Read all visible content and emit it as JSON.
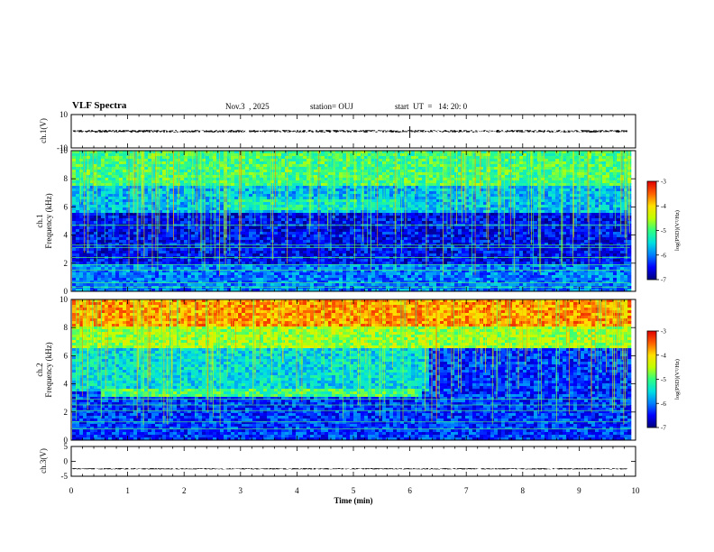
{
  "header": {
    "title": "VLF Spectra",
    "date": "Nov.3  , 2025",
    "station": "station= OUJ",
    "start": "start  UT  =   14: 20: 0"
  },
  "colors": {
    "trace": "#000000",
    "colormap": [
      "#00007a",
      "#0000ff",
      "#0080ff",
      "#00e0e0",
      "#30ff80",
      "#c0ff00",
      "#ffe000",
      "#ff6000",
      "#e00000"
    ]
  },
  "chart_data": [
    {
      "type": "line",
      "name": "ch1-waveform",
      "ylabel": "ch.1(V)",
      "ylim": [
        -10,
        10
      ],
      "yticks": [
        "10",
        "-10"
      ],
      "series": [
        {
          "name": "ch.1",
          "mean": 0,
          "amplitude": 0.8
        }
      ],
      "annotations": [
        {
          "x": 6.0,
          "type": "spike"
        }
      ]
    },
    {
      "type": "heatmap",
      "name": "ch1-spectrogram",
      "ylabel_top": "ch.1",
      "ylabel": "Frequency  (kHz)",
      "ylim": [
        0,
        10
      ],
      "yticks": [
        "0",
        "2",
        "4",
        "6",
        "8",
        "10"
      ],
      "xlim": [
        0,
        10
      ],
      "colorbar": {
        "label": "log(PSD)(V²/Hz)",
        "range": [
          -7,
          -3
        ],
        "ticks": [
          "-3",
          "-4",
          "-5",
          "-6",
          "-7"
        ]
      },
      "segments": [
        {
          "t_start": 0.0,
          "t_end": 9.9,
          "f_low": 7.5,
          "f_high": 10,
          "log_psd": -5.0
        },
        {
          "t_start": 0.0,
          "t_end": 9.9,
          "f_low": 5.5,
          "f_high": 7.5,
          "log_psd": -5.7
        },
        {
          "t_start": 2.7,
          "t_end": 5.8,
          "f_low": 5.8,
          "f_high": 6.6,
          "log_psd": -5.3
        },
        {
          "t_start": 0.0,
          "t_end": 9.9,
          "f_low": 2.0,
          "f_high": 5.5,
          "log_psd": -6.5
        },
        {
          "t_start": 0.0,
          "t_end": 9.9,
          "f_low": 0.0,
          "f_high": 2.0,
          "log_psd": -6.0
        }
      ],
      "lines_khz": [
        0.3,
        0.6,
        1.5,
        1.9,
        2.4,
        3.1,
        3.3,
        4.7
      ]
    },
    {
      "type": "heatmap",
      "name": "ch2-spectrogram",
      "ylabel_top": "ch.2",
      "ylabel": "Frequency  (kHz)",
      "ylim": [
        0,
        10
      ],
      "yticks": [
        "0",
        "2",
        "4",
        "6",
        "8",
        "10"
      ],
      "xlim": [
        0,
        10
      ],
      "colorbar": {
        "label": "log(PSD)(V²/Hz)",
        "range": [
          -7,
          -3
        ],
        "ticks": [
          "-3",
          "-4",
          "-5",
          "-6",
          "-7"
        ]
      },
      "segments": [
        {
          "t_start": 0.0,
          "t_end": 9.9,
          "f_low": 8.0,
          "f_high": 10,
          "log_psd": -3.7
        },
        {
          "t_start": 0.0,
          "t_end": 9.9,
          "f_low": 6.5,
          "f_high": 8.0,
          "log_psd": -4.6
        },
        {
          "t_start": 0.0,
          "t_end": 6.3,
          "f_low": 3.5,
          "f_high": 6.5,
          "log_psd": -5.5
        },
        {
          "t_start": 6.3,
          "t_end": 9.9,
          "f_low": 3.5,
          "f_high": 6.5,
          "log_psd": -6.3
        },
        {
          "t_start": 0.0,
          "t_end": 9.9,
          "f_low": 0.0,
          "f_high": 3.5,
          "log_psd": -6.3
        },
        {
          "t_start": 0.5,
          "t_end": 6.2,
          "f_low": 3.1,
          "f_high": 3.6,
          "log_psd": -5.0
        }
      ],
      "lines_khz": [
        0.8,
        1.3,
        2.1,
        2.5,
        2.9
      ]
    },
    {
      "type": "line",
      "name": "ch3-waveform",
      "ylabel": "ch.3(V)",
      "ylim": [
        -5,
        5
      ],
      "yticks": [
        "5",
        "0",
        "-5"
      ],
      "series": [
        {
          "name": "ch.3",
          "mean": -2.5,
          "amplitude": 0.2
        }
      ]
    }
  ],
  "xaxis": {
    "label": "Time  (min)",
    "range": [
      0,
      10
    ],
    "ticks": [
      "0",
      "1",
      "2",
      "3",
      "4",
      "5",
      "6",
      "7",
      "8",
      "9",
      "10"
    ]
  }
}
